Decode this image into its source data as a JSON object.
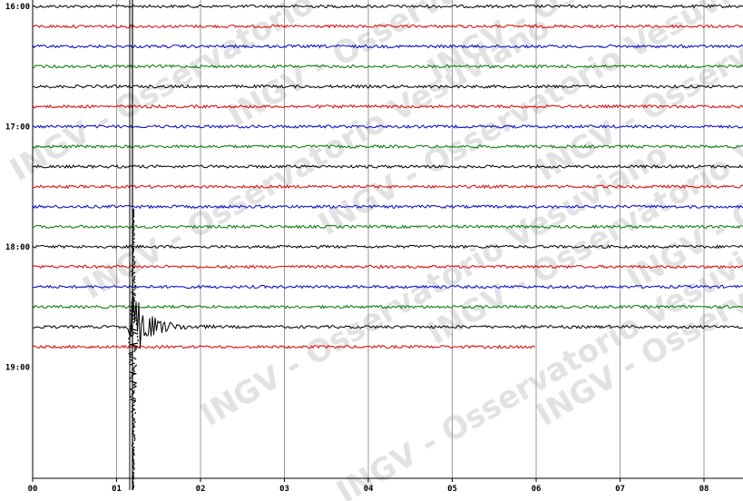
{
  "hour_labels": [
    "16:00",
    "17:00",
    "18:00",
    "19:00"
  ],
  "minute_labels": [
    "00",
    "01",
    "02",
    "03",
    "04",
    "05",
    "06",
    "07",
    "08"
  ],
  "watermark": "INGV - Osservatorio Vesuviano"
}
